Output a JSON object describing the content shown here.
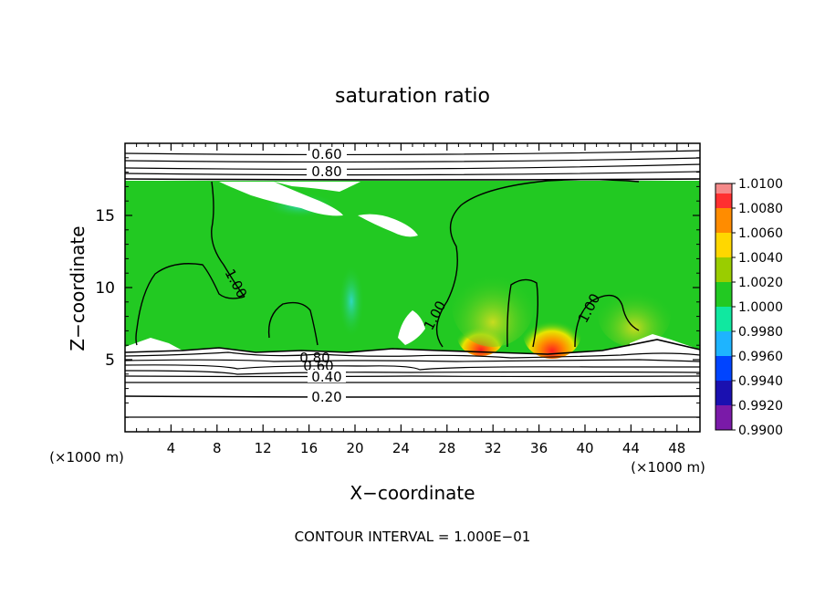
{
  "chart_data": {
    "type": "heatmap",
    "title": "saturation ratio",
    "xlabel": "X−coordinate",
    "ylabel": "Z−coordinate",
    "x_unit_left": "(×1000 m)",
    "x_unit_right": "(×1000 m)",
    "xlim": [
      0,
      50
    ],
    "ylim": [
      0,
      20
    ],
    "x_ticks": [
      4,
      8,
      12,
      16,
      20,
      24,
      28,
      32,
      36,
      40,
      44,
      48
    ],
    "y_ticks": [
      5,
      10,
      15
    ],
    "footer": "CONTOUR INTERVAL = 1.000E−01",
    "colorbar": {
      "labels": [
        "1.0100",
        "1.0080",
        "1.0060",
        "1.0040",
        "1.0020",
        "1.0000",
        "0.9980",
        "0.9960",
        "0.9940",
        "0.9920",
        "0.9900"
      ],
      "colors": [
        "#ff3030",
        "#ff8c00",
        "#ffd700",
        "#9acd00",
        "#22c922",
        "#10e8a0",
        "#1eb4ff",
        "#0044ff",
        "#1a10b0",
        "#7a1aa8"
      ],
      "top_color": "#f58a8a"
    },
    "contour_labels": [
      "0.60",
      "0.80",
      "1.00",
      "1.00",
      "1.00",
      "0.80",
      "0.60",
      "0.40",
      "0.20"
    ],
    "regions": {
      "supersaturated_layer_z": [
        5.8,
        17.3
      ],
      "upper_contour_levels_z": [
        19.2,
        18.3,
        17.7
      ],
      "lower_contour_levels_z": [
        5.2,
        4.9,
        4.5,
        4.1,
        3.7,
        3.3,
        2.6,
        1.1
      ]
    }
  }
}
